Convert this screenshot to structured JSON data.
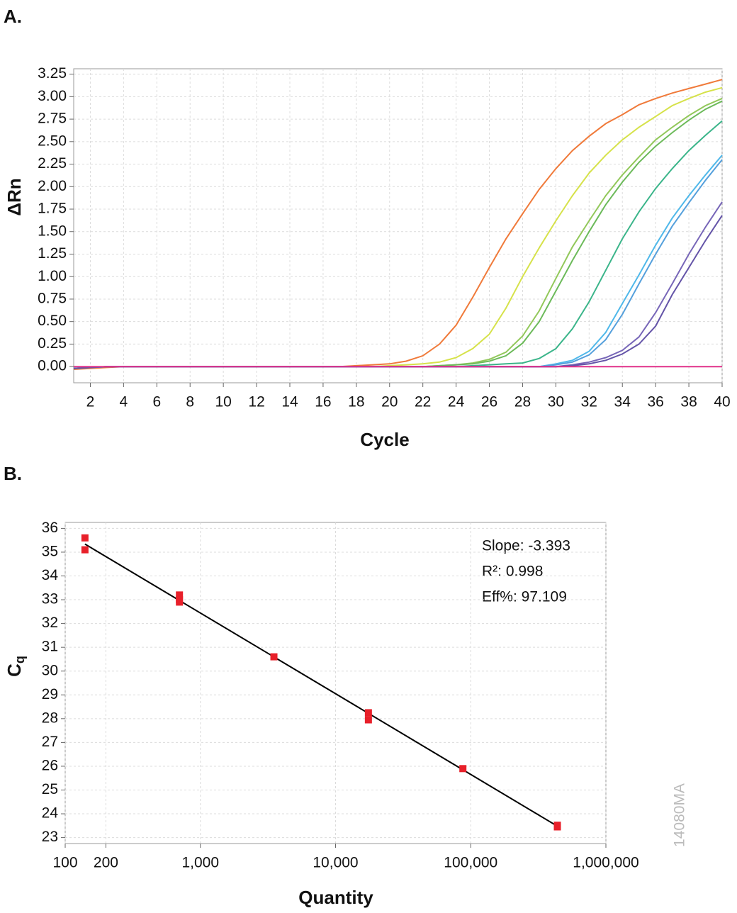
{
  "chart_data": [
    {
      "type": "line",
      "label": "A.",
      "xlabel": "Cycle",
      "ylabel": "ΔRn",
      "x": [
        1,
        2,
        3,
        4,
        5,
        6,
        7,
        8,
        9,
        10,
        11,
        12,
        13,
        14,
        15,
        16,
        17,
        18,
        19,
        20,
        21,
        22,
        23,
        24,
        25,
        26,
        27,
        28,
        29,
        30,
        31,
        32,
        33,
        34,
        35,
        36,
        37,
        38,
        39,
        40
      ],
      "xlim": [
        1,
        40
      ],
      "xticks": [
        2,
        4,
        6,
        8,
        10,
        12,
        14,
        16,
        18,
        20,
        22,
        24,
        26,
        28,
        30,
        32,
        34,
        36,
        38,
        40
      ],
      "ylim": [
        -0.18,
        3.31
      ],
      "yticks": [
        {
          "value": 0,
          "label": "0.00"
        },
        {
          "value": 0.25,
          "label": "0.25"
        },
        {
          "value": 0.5,
          "label": "0.50"
        },
        {
          "value": 0.75,
          "label": "0.75"
        },
        {
          "value": 1,
          "label": "1.00"
        },
        {
          "value": 1.25,
          "label": "1.25"
        },
        {
          "value": 1.5,
          "label": "1.50"
        },
        {
          "value": 1.75,
          "label": "1.75"
        },
        {
          "value": 2,
          "label": "2.00"
        },
        {
          "value": 2.25,
          "label": "2.25"
        },
        {
          "value": 2.5,
          "label": "2.50"
        },
        {
          "value": 2.75,
          "label": "2.75"
        },
        {
          "value": 3,
          "label": "3.00"
        },
        {
          "value": 3.25,
          "label": "3.25"
        }
      ],
      "grid": true,
      "series": [
        {
          "color": "#f07a3a",
          "values": [
            -0.03,
            -0.02,
            -0.01,
            0,
            0,
            0,
            0,
            0,
            0,
            0,
            0,
            0,
            0,
            0,
            0,
            0,
            0,
            0.01,
            0.02,
            0.03,
            0.06,
            0.12,
            0.25,
            0.46,
            0.77,
            1.1,
            1.42,
            1.7,
            1.97,
            2.2,
            2.4,
            2.56,
            2.7,
            2.8,
            2.91,
            2.98,
            3.04,
            3.09,
            3.14,
            3.19
          ]
        },
        {
          "color": "#d6e24a",
          "values": [
            -0.02,
            -0.01,
            0,
            0,
            0,
            0,
            0,
            0,
            0,
            0,
            0,
            0,
            0,
            0,
            0,
            0,
            0,
            0,
            0,
            0.01,
            0.02,
            0.03,
            0.05,
            0.1,
            0.2,
            0.36,
            0.65,
            1.0,
            1.32,
            1.62,
            1.9,
            2.15,
            2.35,
            2.52,
            2.66,
            2.78,
            2.9,
            2.98,
            3.05,
            3.1
          ]
        },
        {
          "color": "#92c85a",
          "values": [
            -0.02,
            -0.01,
            0,
            0,
            0,
            0,
            0,
            0,
            0,
            0,
            0,
            0,
            0,
            0,
            0,
            0,
            0,
            0,
            0,
            0,
            0,
            0,
            0.01,
            0.02,
            0.04,
            0.08,
            0.16,
            0.34,
            0.62,
            0.98,
            1.33,
            1.62,
            1.9,
            2.13,
            2.33,
            2.52,
            2.66,
            2.79,
            2.9,
            2.98
          ]
        },
        {
          "color": "#6cba5a",
          "values": [
            -0.02,
            -0.01,
            0,
            0,
            0,
            0,
            0,
            0,
            0,
            0,
            0,
            0,
            0,
            0,
            0,
            0,
            0,
            0,
            0,
            0,
            0,
            0,
            0.01,
            0.02,
            0.03,
            0.06,
            0.12,
            0.26,
            0.5,
            0.84,
            1.18,
            1.5,
            1.8,
            2.05,
            2.27,
            2.45,
            2.6,
            2.74,
            2.86,
            2.95
          ]
        },
        {
          "color": "#3bb58a",
          "values": [
            -0.02,
            -0.01,
            0,
            0,
            0,
            0,
            0,
            0,
            0,
            0,
            0,
            0,
            0,
            0,
            0,
            0,
            0,
            0,
            0,
            0,
            0,
            0,
            0,
            0,
            0.01,
            0.02,
            0.03,
            0.04,
            0.09,
            0.2,
            0.42,
            0.72,
            1.07,
            1.42,
            1.72,
            1.98,
            2.2,
            2.4,
            2.57,
            2.73
          ]
        },
        {
          "color": "#4fb8ea",
          "values": [
            -0.02,
            -0.01,
            0,
            0,
            0,
            0,
            0,
            0,
            0,
            0,
            0,
            0,
            0,
            0,
            0,
            0,
            0,
            0,
            0,
            0,
            0,
            0,
            0,
            0,
            0,
            0,
            0,
            0,
            0,
            0.03,
            0.07,
            0.17,
            0.38,
            0.7,
            1.02,
            1.35,
            1.65,
            1.9,
            2.13,
            2.35
          ]
        },
        {
          "color": "#55a0dc",
          "values": [
            -0.02,
            -0.01,
            0,
            0,
            0,
            0,
            0,
            0,
            0,
            0,
            0,
            0,
            0,
            0,
            0,
            0,
            0,
            0,
            0,
            0,
            0,
            0,
            0,
            0,
            0,
            0,
            0,
            0,
            0,
            0.02,
            0.05,
            0.13,
            0.3,
            0.58,
            0.92,
            1.25,
            1.56,
            1.82,
            2.07,
            2.3
          ]
        },
        {
          "color": "#7766b8",
          "values": [
            -0.02,
            -0.01,
            0,
            0,
            0,
            0,
            0,
            0,
            0,
            0,
            0,
            0,
            0,
            0,
            0,
            0,
            0,
            0,
            0,
            0,
            0,
            0,
            0,
            0,
            0,
            0,
            0,
            0,
            0,
            0,
            0.02,
            0.05,
            0.1,
            0.18,
            0.33,
            0.6,
            0.92,
            1.25,
            1.55,
            1.83
          ]
        },
        {
          "color": "#6454a8",
          "values": [
            -0.02,
            -0.01,
            0,
            0,
            0,
            0,
            0,
            0,
            0,
            0,
            0,
            0,
            0,
            0,
            0,
            0,
            0,
            0,
            0,
            0,
            0,
            0,
            0,
            0,
            0,
            0,
            0,
            0,
            0,
            0,
            0.01,
            0.03,
            0.07,
            0.14,
            0.25,
            0.45,
            0.8,
            1.1,
            1.4,
            1.68
          ]
        },
        {
          "color": "#e0308a",
          "values": [
            0,
            0,
            0,
            0,
            0,
            0,
            0,
            0,
            0,
            0,
            0,
            0,
            0,
            0,
            0,
            0,
            0,
            0,
            0,
            0,
            0,
            0,
            0,
            0,
            0,
            0,
            0,
            0,
            0,
            0,
            0,
            0,
            0,
            0,
            0,
            0,
            0,
            0,
            0,
            0
          ]
        }
      ]
    },
    {
      "type": "scatter",
      "label": "B.",
      "xlabel": "Quantity",
      "ylabel": {
        "main": "C",
        "sub": "q"
      },
      "xlog": true,
      "xlim": [
        100,
        1000000
      ],
      "xticks": [
        100,
        200,
        {
          "value": 1000,
          "label": "1,000"
        },
        {
          "value": 10000,
          "label": "10,000"
        },
        {
          "value": 100000,
          "label": "100,000"
        },
        {
          "value": 1000000,
          "label": "1,000,000"
        }
      ],
      "ylim": [
        22.75,
        36.25
      ],
      "yticks": [
        23,
        24,
        25,
        26,
        27,
        28,
        29,
        30,
        31,
        32,
        33,
        34,
        35,
        36
      ],
      "grid": true,
      "color": "#e8202a",
      "x": [
        140,
        140,
        700,
        700,
        700,
        3500,
        17500,
        17500,
        87500,
        437500,
        437500
      ],
      "values": [
        35.6,
        35.1,
        33.2,
        33.0,
        32.9,
        30.6,
        28.25,
        27.95,
        25.9,
        23.52,
        23.45
      ],
      "fit_line": {
        "x": [
          140,
          437500
        ],
        "values": [
          35.34,
          23.48
        ]
      },
      "annotations": [
        "Slope: -3.393",
        "R²: 0.998",
        "Eff%: 97.109"
      ],
      "watermark": "14080MA"
    }
  ]
}
